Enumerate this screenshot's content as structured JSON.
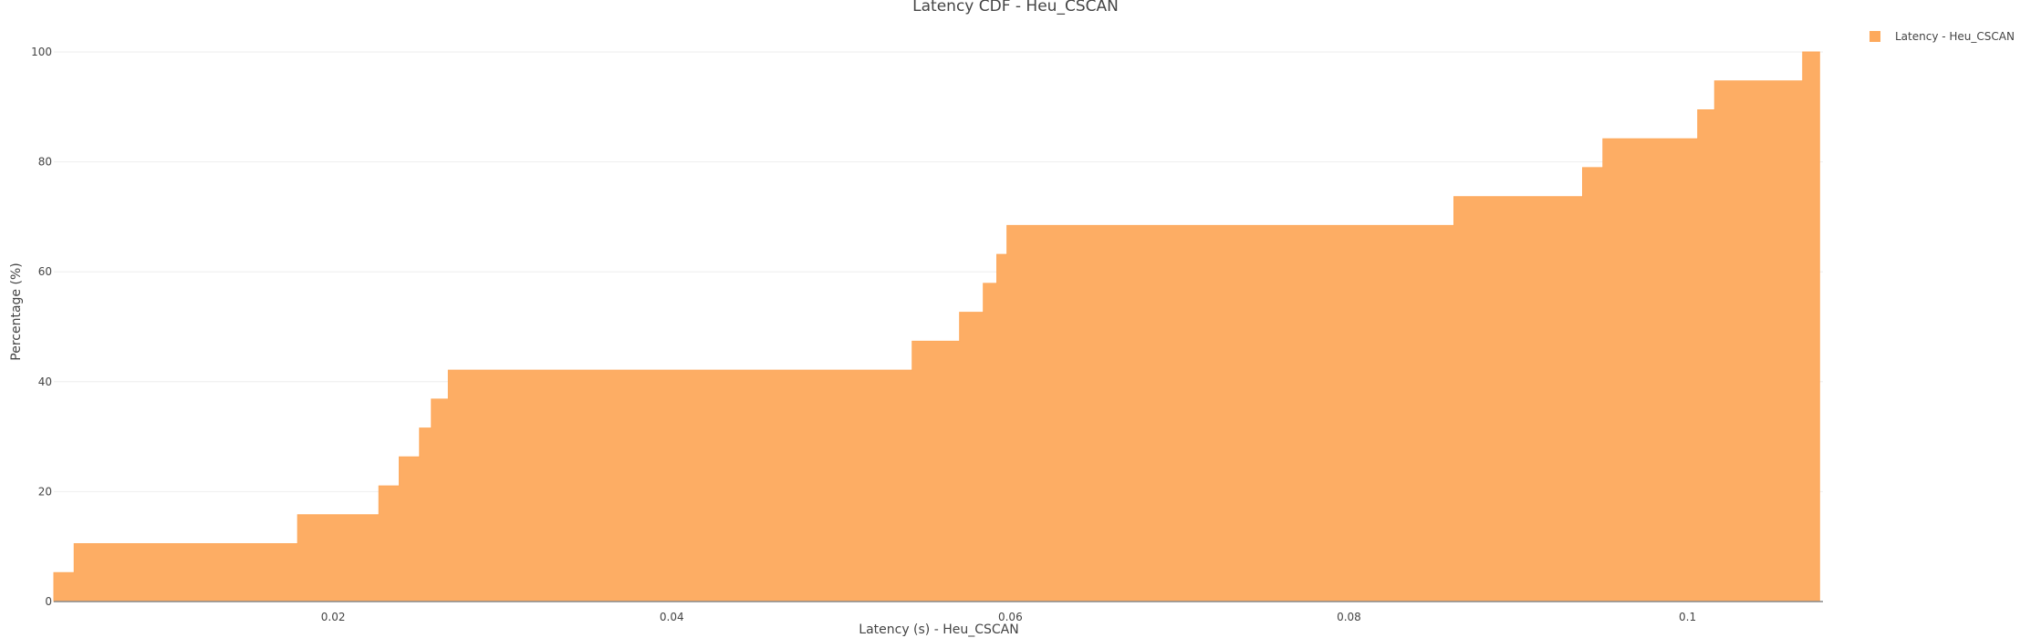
{
  "chart_data": {
    "type": "area",
    "title": "Latency CDF - Heu_CSCAN",
    "xlabel": "Latency (s) - Heu_CSCAN",
    "ylabel": "Percentage (%)",
    "xlim": [
      0.0035,
      0.108
    ],
    "ylim": [
      0,
      100
    ],
    "x_ticks": [
      0.02,
      0.04,
      0.06,
      0.08,
      0.1
    ],
    "x_tick_labels": [
      "0.02",
      "0.04",
      "0.06",
      "0.08",
      "0.1"
    ],
    "y_ticks": [
      0,
      20,
      40,
      60,
      80,
      100
    ],
    "y_tick_labels": [
      "0",
      "20",
      "40",
      "60",
      "80",
      "100"
    ],
    "grid": true,
    "step": "post",
    "legend_position": "top-right",
    "series": [
      {
        "name": "Latency - Heu_CSCAN",
        "color": "#fda95c",
        "x": [
          0.0035,
          0.0047,
          0.0179,
          0.0227,
          0.0239,
          0.0251,
          0.0258,
          0.0268,
          0.0542,
          0.057,
          0.0584,
          0.0592,
          0.0598,
          0.0862,
          0.0938,
          0.095,
          0.1006,
          0.1016,
          0.1068,
          0.1078
        ],
        "y": [
          5.26,
          10.53,
          15.79,
          21.05,
          26.32,
          31.58,
          36.84,
          42.11,
          47.37,
          52.63,
          57.89,
          63.16,
          68.42,
          73.68,
          78.95,
          84.21,
          89.47,
          94.74,
          100,
          100
        ]
      }
    ]
  }
}
